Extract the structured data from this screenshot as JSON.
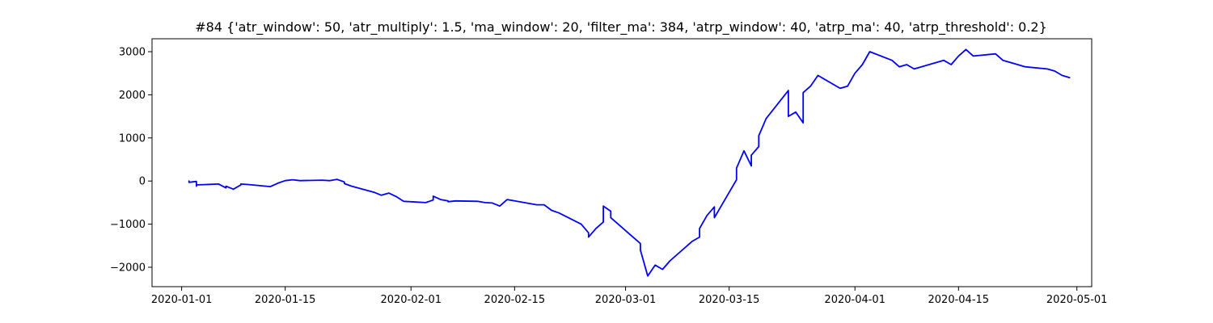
{
  "chart_data": {
    "type": "line",
    "title": "#84 {'atr_window': 50, 'atr_multiply': 1.5, 'ma_window': 20, 'filter_ma': 384, 'atrp_window': 40, 'atrp_ma': 40, 'atrp_threshold': 0.2}",
    "xlabel": "",
    "ylabel": "",
    "xlim": [
      "2019-12-28",
      "2020-05-03"
    ],
    "ylim": [
      -2450,
      3300
    ],
    "grid": false,
    "legend": "none",
    "x_ticks": [
      "2020-01-01",
      "2020-01-15",
      "2020-02-01",
      "2020-02-15",
      "2020-03-01",
      "2020-03-15",
      "2020-04-01",
      "2020-04-15",
      "2020-05-01"
    ],
    "y_ticks": [
      -2000,
      -1000,
      0,
      1000,
      2000,
      3000
    ],
    "y_tick_labels": [
      "−2000",
      "−1000",
      "0",
      "1000",
      "2000",
      "3000"
    ],
    "series": [
      {
        "color": "#0000ff",
        "x": [
          "2020-01-02",
          "2020-01-02",
          "2020-01-03",
          "2020-01-03",
          "2020-01-03",
          "2020-01-06",
          "2020-01-07",
          "2020-01-07",
          "2020-01-08",
          "2020-01-09",
          "2020-01-09",
          "2020-01-10",
          "2020-01-10",
          "2020-01-13",
          "2020-01-14",
          "2020-01-15",
          "2020-01-16",
          "2020-01-17",
          "2020-01-20",
          "2020-01-21",
          "2020-01-22",
          "2020-01-23",
          "2020-01-23",
          "2020-01-24",
          "2020-01-27",
          "2020-01-28",
          "2020-01-29",
          "2020-01-30",
          "2020-01-31",
          "2020-02-03",
          "2020-02-04",
          "2020-02-04",
          "2020-02-05",
          "2020-02-06",
          "2020-02-06",
          "2020-02-07",
          "2020-02-10",
          "2020-02-11",
          "2020-02-12",
          "2020-02-13",
          "2020-02-14",
          "2020-02-17",
          "2020-02-18",
          "2020-02-19",
          "2020-02-20",
          "2020-02-21",
          "2020-02-24",
          "2020-02-25",
          "2020-02-25",
          "2020-02-26",
          "2020-02-27",
          "2020-02-27",
          "2020-02-28",
          "2020-02-28",
          "2020-03-02",
          "2020-03-03",
          "2020-03-03",
          "2020-03-04",
          "2020-03-05",
          "2020-03-06",
          "2020-03-07",
          "2020-03-10",
          "2020-03-11",
          "2020-03-11",
          "2020-03-12",
          "2020-03-13",
          "2020-03-13",
          "2020-03-16",
          "2020-03-16",
          "2020-03-17",
          "2020-03-18",
          "2020-03-18",
          "2020-03-19",
          "2020-03-19",
          "2020-03-20",
          "2020-03-23",
          "2020-03-23",
          "2020-03-24",
          "2020-03-25",
          "2020-03-25",
          "2020-03-26",
          "2020-03-27",
          "2020-03-30",
          "2020-03-31",
          "2020-04-01",
          "2020-04-02",
          "2020-04-03",
          "2020-04-06",
          "2020-04-07",
          "2020-04-08",
          "2020-04-09",
          "2020-04-13",
          "2020-04-14",
          "2020-04-15",
          "2020-04-16",
          "2020-04-17",
          "2020-04-20",
          "2020-04-21",
          "2020-04-22",
          "2020-04-23",
          "2020-04-24",
          "2020-04-27",
          "2020-04-28",
          "2020-04-29",
          "2020-04-30"
        ],
        "values": [
          0,
          -30,
          -10,
          -120,
          -90,
          -70,
          -160,
          -120,
          -190,
          -90,
          -70,
          -80,
          -80,
          -130,
          -50,
          10,
          30,
          10,
          20,
          10,
          40,
          -20,
          -60,
          -120,
          -260,
          -330,
          -280,
          -360,
          -470,
          -500,
          -440,
          -350,
          -430,
          -460,
          -480,
          -460,
          -470,
          -500,
          -510,
          -580,
          -430,
          -520,
          -550,
          -550,
          -680,
          -740,
          -1000,
          -1200,
          -1300,
          -1100,
          -950,
          -580,
          -700,
          -850,
          -1300,
          -1450,
          -1600,
          -2200,
          -1950,
          -2050,
          -1850,
          -1400,
          -1300,
          -1100,
          -800,
          -600,
          -850,
          30,
          300,
          700,
          350,
          600,
          800,
          1050,
          1450,
          2100,
          1500,
          1600,
          1350,
          2050,
          2200,
          2450,
          2150,
          2200,
          2500,
          2700,
          3000,
          2800,
          2650,
          2700,
          2600,
          2800,
          2700,
          2900,
          3050,
          2900,
          2950,
          2800,
          2750,
          2700,
          2650,
          2600,
          2550,
          2450,
          2400
        ]
      }
    ]
  }
}
